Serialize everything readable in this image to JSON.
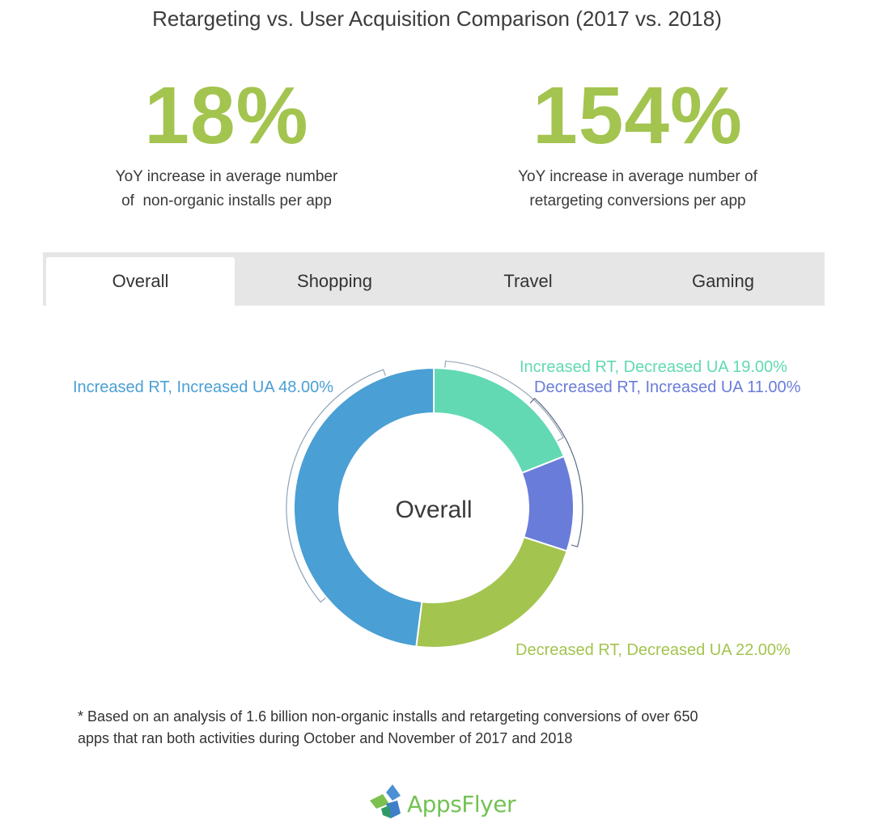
{
  "title": "Retargeting vs. User Acquisition Comparison (2017 vs. 2018)",
  "stats": [
    {
      "value": "18%",
      "desc_line1": "YoY increase in average number",
      "desc_line2": "of  non-organic installs per app"
    },
    {
      "value": "154%",
      "desc_line1": "YoY increase in average number of",
      "desc_line2": "retargeting conversions per app"
    }
  ],
  "tabs": [
    {
      "label": "Overall",
      "active": true
    },
    {
      "label": "Shopping",
      "active": false
    },
    {
      "label": "Travel",
      "active": false
    },
    {
      "label": "Gaming",
      "active": false
    }
  ],
  "chart_data": {
    "type": "pie",
    "center_label": "Overall",
    "slices": [
      {
        "label": "Increased RT, Decreased UA 19.00%",
        "value": 19.0,
        "color": "#62d9b3"
      },
      {
        "label": "Decreased RT, Increased UA 11.00%",
        "value": 11.0,
        "color": "#6a7cd9"
      },
      {
        "label": "Decreased RT, Decreased UA 22.00%",
        "value": 22.0,
        "color": "#a3c44f"
      },
      {
        "label": "Increased RT, Increased UA 48.00%",
        "value": 48.0,
        "color": "#4a9fd4"
      }
    ]
  },
  "footnote_line1": "* Based on an analysis of 1.6 billion non-organic installs and retargeting conversions of over 650",
  "footnote_line2": "apps that ran both activities during October and November of 2017 and 2018",
  "logo_text": "AppsFlyer"
}
